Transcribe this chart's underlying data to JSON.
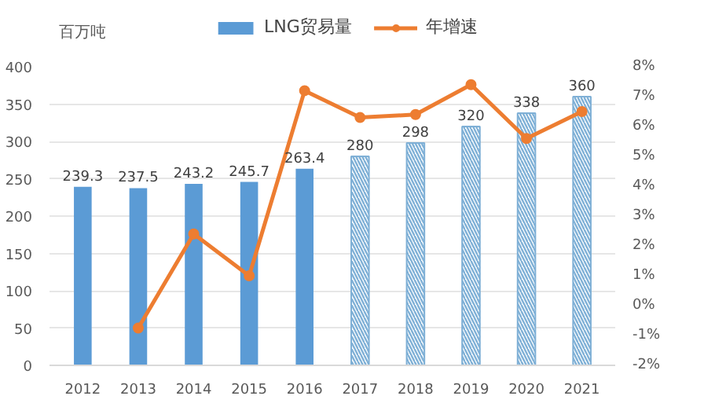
{
  "chart_data": {
    "type": "bar",
    "ylabel": "百万吨",
    "categories": [
      "2012",
      "2013",
      "2014",
      "2015",
      "2016",
      "2017",
      "2018",
      "2019",
      "2020",
      "2021"
    ],
    "series": [
      {
        "name": "LNG贸易量",
        "color": "#5b9bd5",
        "colors": [
          "#5b9bd5",
          "#5b9bd5",
          "#5b9bd5",
          "#5b9bd5",
          "#5b9bd5",
          "#7fb0d6",
          "#7fb0d6",
          "#7fb0d6",
          "#7fb0d6",
          "#7fb0d6"
        ],
        "values": [
          239.3,
          237.5,
          243.2,
          245.7,
          263.4,
          280,
          298,
          320,
          338,
          360
        ],
        "value_labels": [
          "239.3",
          "237.5",
          "243.2",
          "245.7",
          "263.4",
          "280",
          "298",
          "320",
          "338",
          "360"
        ]
      },
      {
        "name": "年增速",
        "type": "line",
        "axis": "y2",
        "color": "#ed7d31",
        "marker": "circle",
        "values": [
          null,
          -0.75,
          2.4,
          1.0,
          7.2,
          6.3,
          6.4,
          7.4,
          5.6,
          6.5
        ]
      }
    ],
    "ylim": [
      0,
      400
    ],
    "yticks": [
      0,
      50,
      100,
      150,
      200,
      250,
      300,
      350,
      400
    ],
    "y2lim": [
      -2,
      8
    ],
    "y2ticks": [
      {
        "value": -2,
        "label": "-2%"
      },
      {
        "value": -1,
        "label": "-1%"
      },
      {
        "value": 0,
        "label": "0%"
      },
      {
        "value": 1,
        "label": "1%"
      },
      {
        "value": 2,
        "label": "2%"
      },
      {
        "value": 3,
        "label": "3%"
      },
      {
        "value": 4,
        "label": "4%"
      },
      {
        "value": 5,
        "label": "5%"
      },
      {
        "value": 6,
        "label": "6%"
      },
      {
        "value": 7,
        "label": "7%"
      },
      {
        "value": 8,
        "label": "8%"
      }
    ],
    "grid": "y",
    "legend": "top"
  }
}
